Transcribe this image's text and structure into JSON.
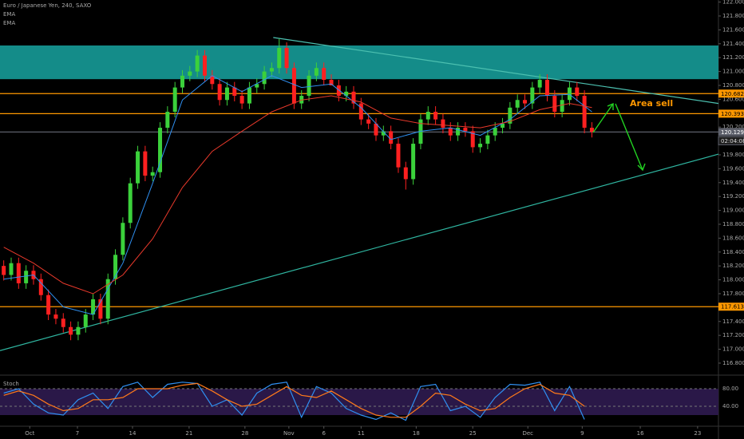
{
  "chart_data": [
    {
      "type": "candlestick",
      "title": "Euro / Japanese Yen, 240, SAXO",
      "x": [
        0,
        1,
        2,
        3,
        4,
        5,
        6,
        7,
        8,
        9,
        10,
        11,
        12,
        13,
        14,
        15,
        16,
        17,
        18,
        19,
        20,
        21,
        22,
        23,
        24,
        25,
        26,
        27,
        28,
        29,
        30,
        31,
        32,
        33,
        34,
        35,
        36,
        37,
        38,
        39,
        40,
        41,
        42,
        43,
        44,
        45,
        46,
        47,
        48,
        49,
        50,
        51,
        52,
        53,
        54,
        55,
        56,
        57,
        58,
        59,
        60,
        61,
        62,
        63,
        64,
        65,
        66,
        67,
        68,
        69,
        70,
        71,
        72,
        73,
        74,
        75,
        76,
        77,
        78,
        79
      ],
      "open": [
        118.2,
        118.07,
        118.24,
        117.95,
        118.13,
        118.01,
        117.78,
        117.5,
        117.44,
        117.32,
        117.21,
        117.32,
        117.5,
        117.72,
        117.44,
        118.01,
        118.36,
        118.82,
        119.39,
        119.85,
        119.5,
        119.55,
        120.19,
        120.42,
        120.77,
        120.94,
        121.0,
        121.23,
        120.94,
        120.82,
        120.59,
        120.77,
        120.65,
        120.54,
        120.77,
        120.82,
        121.0,
        121.05,
        121.34,
        121.05,
        120.54,
        120.65,
        120.94,
        121.05,
        120.88,
        120.8,
        120.65,
        120.71,
        120.54,
        120.31,
        120.25,
        120.08,
        120.14,
        119.96,
        119.62,
        119.45,
        119.96,
        120.31,
        120.42,
        120.31,
        120.19,
        120.08,
        120.19,
        120.14,
        119.91,
        119.96,
        120.08,
        120.19,
        120.25,
        120.48,
        120.59,
        120.54,
        120.77,
        120.88,
        120.65,
        120.42,
        120.59,
        120.77,
        120.65,
        120.19
      ],
      "high": [
        118.28,
        118.32,
        118.32,
        118.21,
        118.21,
        118.09,
        117.86,
        117.58,
        117.52,
        117.4,
        117.4,
        117.58,
        117.8,
        117.8,
        118.09,
        118.44,
        118.9,
        119.47,
        119.93,
        119.93,
        119.63,
        120.27,
        120.5,
        120.85,
        121.02,
        121.08,
        121.31,
        121.31,
        121.02,
        120.9,
        120.85,
        120.85,
        120.73,
        120.85,
        120.9,
        121.08,
        121.13,
        121.47,
        121.42,
        121.13,
        120.73,
        121.02,
        121.13,
        121.13,
        120.96,
        120.88,
        120.79,
        120.79,
        120.62,
        120.39,
        120.33,
        120.22,
        120.22,
        120.04,
        119.7,
        120.04,
        120.39,
        120.5,
        120.5,
        120.39,
        120.27,
        120.27,
        120.27,
        120.22,
        120.04,
        120.16,
        120.27,
        120.33,
        120.56,
        120.67,
        120.67,
        120.85,
        120.96,
        120.96,
        120.73,
        120.67,
        120.85,
        120.85,
        120.73,
        120.27
      ],
      "low": [
        117.99,
        117.99,
        117.87,
        117.87,
        117.93,
        117.7,
        117.42,
        117.36,
        117.24,
        117.13,
        117.13,
        117.24,
        117.42,
        117.36,
        117.36,
        117.93,
        118.28,
        118.74,
        119.31,
        119.42,
        119.42,
        119.47,
        120.11,
        120.34,
        120.69,
        120.86,
        120.92,
        120.86,
        120.74,
        120.51,
        120.51,
        120.57,
        120.46,
        120.46,
        120.69,
        120.74,
        120.92,
        120.97,
        120.97,
        120.46,
        120.46,
        120.57,
        120.86,
        120.8,
        120.8,
        120.57,
        120.57,
        120.46,
        120.23,
        120.17,
        120.0,
        120.0,
        119.88,
        119.54,
        119.3,
        119.37,
        119.88,
        120.23,
        120.23,
        120.11,
        120.0,
        120.0,
        120.06,
        119.83,
        119.83,
        119.88,
        120.0,
        120.11,
        120.17,
        120.4,
        120.46,
        120.46,
        120.69,
        120.57,
        120.34,
        120.34,
        120.51,
        120.57,
        120.11,
        120.05
      ],
      "close": [
        118.07,
        118.24,
        117.95,
        118.13,
        118.01,
        117.78,
        117.5,
        117.44,
        117.32,
        117.21,
        117.32,
        117.5,
        117.72,
        117.44,
        118.01,
        118.36,
        118.82,
        119.39,
        119.85,
        119.5,
        119.55,
        120.19,
        120.42,
        120.77,
        120.94,
        121.0,
        121.23,
        120.94,
        120.82,
        120.59,
        120.77,
        120.65,
        120.54,
        120.77,
        120.82,
        121.0,
        121.05,
        121.34,
        121.05,
        120.54,
        120.65,
        120.94,
        121.05,
        120.88,
        120.8,
        120.65,
        120.71,
        120.54,
        120.31,
        120.25,
        120.08,
        120.14,
        119.96,
        119.62,
        119.45,
        119.96,
        120.31,
        120.42,
        120.31,
        120.19,
        120.08,
        120.19,
        120.14,
        119.91,
        119.96,
        120.08,
        120.19,
        120.25,
        120.48,
        120.59,
        120.54,
        120.77,
        120.88,
        120.65,
        120.42,
        120.59,
        120.77,
        120.65,
        120.19,
        120.13
      ],
      "up_color": "#3bd13b",
      "down_color": "#ff2020",
      "xlim": [
        -0.5,
        96
      ],
      "xticks": [
        {
          "value": 3.5,
          "label": "Oct"
        },
        {
          "value": 9.9,
          "label": "7"
        },
        {
          "value": 17.3,
          "label": "14"
        },
        {
          "value": 24.9,
          "label": "21"
        },
        {
          "value": 32.4,
          "label": "28"
        },
        {
          "value": 38.3,
          "label": "Nov"
        },
        {
          "value": 43.0,
          "label": "6"
        },
        {
          "value": 48.0,
          "label": "11"
        },
        {
          "value": 55.4,
          "label": "18"
        },
        {
          "value": 63.0,
          "label": "25"
        },
        {
          "value": 70.4,
          "label": "Dec"
        },
        {
          "value": 77.7,
          "label": "9"
        },
        {
          "value": 85.5,
          "label": "16"
        },
        {
          "value": 93.2,
          "label": "23"
        }
      ],
      "ylim": [
        116.65,
        122.03
      ],
      "yticks": [
        {
          "value": 116.8,
          "label": "116.800"
        },
        {
          "value": 117.0,
          "label": "117.000"
        },
        {
          "value": 117.2,
          "label": "117.200"
        },
        {
          "value": 117.4,
          "label": "117.400"
        },
        {
          "value": 117.6,
          "label": "117.600"
        },
        {
          "value": 117.8,
          "label": "117.800"
        },
        {
          "value": 118.0,
          "label": "118.000"
        },
        {
          "value": 118.2,
          "label": "118.200"
        },
        {
          "value": 118.4,
          "label": "118.400"
        },
        {
          "value": 118.6,
          "label": "118.600"
        },
        {
          "value": 118.8,
          "label": "118.800"
        },
        {
          "value": 119.0,
          "label": "119.000"
        },
        {
          "value": 119.2,
          "label": "119.200"
        },
        {
          "value": 119.4,
          "label": "119.400"
        },
        {
          "value": 119.6,
          "label": "119.600"
        },
        {
          "value": 119.8,
          "label": "119.800"
        },
        {
          "value": 120.0,
          "label": "120.000"
        },
        {
          "value": 120.2,
          "label": "120.200"
        },
        {
          "value": 120.4,
          "label": "120.400"
        },
        {
          "value": 120.6,
          "label": "120.600"
        },
        {
          "value": 120.8,
          "label": "120.800"
        },
        {
          "value": 121.0,
          "label": "121.000"
        },
        {
          "value": 121.2,
          "label": "121.200"
        },
        {
          "value": 121.4,
          "label": "121.400"
        },
        {
          "value": 121.6,
          "label": "121.600"
        },
        {
          "value": 121.8,
          "label": "121.800"
        },
        {
          "value": 122.0,
          "label": "122.000"
        }
      ],
      "grid": false,
      "ema": [
        {
          "name": "EMA",
          "color": "#2f8ff0",
          "x": [
            0,
            4,
            8,
            12,
            16,
            20,
            24,
            28,
            32,
            36,
            40,
            44,
            48,
            52,
            56,
            60,
            64,
            68,
            72,
            76,
            79
          ],
          "values": [
            118.01,
            118.07,
            117.61,
            117.5,
            118.24,
            119.39,
            120.59,
            120.94,
            120.71,
            120.94,
            120.77,
            120.82,
            120.48,
            120.02,
            120.14,
            120.19,
            120.08,
            120.31,
            120.65,
            120.67,
            120.42
          ]
        },
        {
          "name": "EMA",
          "color": "#e8392b",
          "x": [
            0,
            4,
            8,
            12,
            16,
            20,
            24,
            28,
            32,
            36,
            40,
            44,
            48,
            52,
            56,
            60,
            64,
            68,
            72,
            76,
            79
          ],
          "values": [
            118.47,
            118.24,
            117.95,
            117.8,
            118.07,
            118.59,
            119.33,
            119.85,
            120.14,
            120.42,
            120.59,
            120.65,
            120.56,
            120.33,
            120.25,
            120.22,
            120.19,
            120.28,
            120.45,
            120.54,
            120.48
          ]
        }
      ],
      "zone": {
        "y": [
          120.89,
          121.375
        ],
        "color": "#148c89"
      },
      "trendlines": [
        {
          "x": [
            36.2,
            96
          ],
          "y": [
            121.49,
            120.54
          ],
          "color": "#4cc0b0"
        },
        {
          "x": [
            -0.5,
            96
          ],
          "y": [
            116.98,
            119.81
          ],
          "color": "#2fb5a0"
        }
      ],
      "levels": [
        {
          "value": 120.682,
          "color": "#ff9800"
        },
        {
          "value": 120.393,
          "color": "#ff9800"
        },
        {
          "value": 120.129,
          "color": "#5d606b"
        },
        {
          "value": 117.613,
          "color": "#ff9800"
        }
      ],
      "countdown": "02:04:08",
      "annotation": "Area sell"
    },
    {
      "type": "line",
      "title": "Stoch",
      "x": [
        0,
        2,
        4,
        6,
        8,
        10,
        12,
        14,
        16,
        18,
        20,
        22,
        24,
        26,
        28,
        30,
        32,
        34,
        36,
        38,
        40,
        42,
        44,
        46,
        48,
        50,
        52,
        54,
        56,
        58,
        60,
        62,
        64,
        66,
        68,
        70,
        72,
        74,
        76,
        78
      ],
      "xlim": [
        -0.5,
        96
      ],
      "ylim": [
        0,
        100
      ],
      "yticks": [
        {
          "value": 80,
          "label": "80.00"
        },
        {
          "value": 40,
          "label": "40.00"
        }
      ],
      "band": [
        20,
        80
      ],
      "series": [
        {
          "color": "#2f8ff0",
          "values": [
            70,
            80,
            45,
            25,
            20,
            55,
            70,
            35,
            85,
            95,
            60,
            90,
            95,
            92,
            40,
            55,
            20,
            70,
            90,
            95,
            15,
            85,
            70,
            35,
            20,
            10,
            25,
            8,
            85,
            90,
            30,
            40,
            15,
            60,
            90,
            88,
            95,
            30,
            85,
            10
          ]
        },
        {
          "color": "#ff7a1a",
          "values": [
            65,
            75,
            65,
            45,
            30,
            35,
            55,
            55,
            60,
            80,
            80,
            80,
            88,
            92,
            75,
            55,
            40,
            45,
            65,
            85,
            65,
            60,
            75,
            55,
            35,
            20,
            15,
            15,
            40,
            70,
            65,
            45,
            30,
            35,
            60,
            80,
            90,
            70,
            65,
            40
          ]
        }
      ]
    }
  ]
}
